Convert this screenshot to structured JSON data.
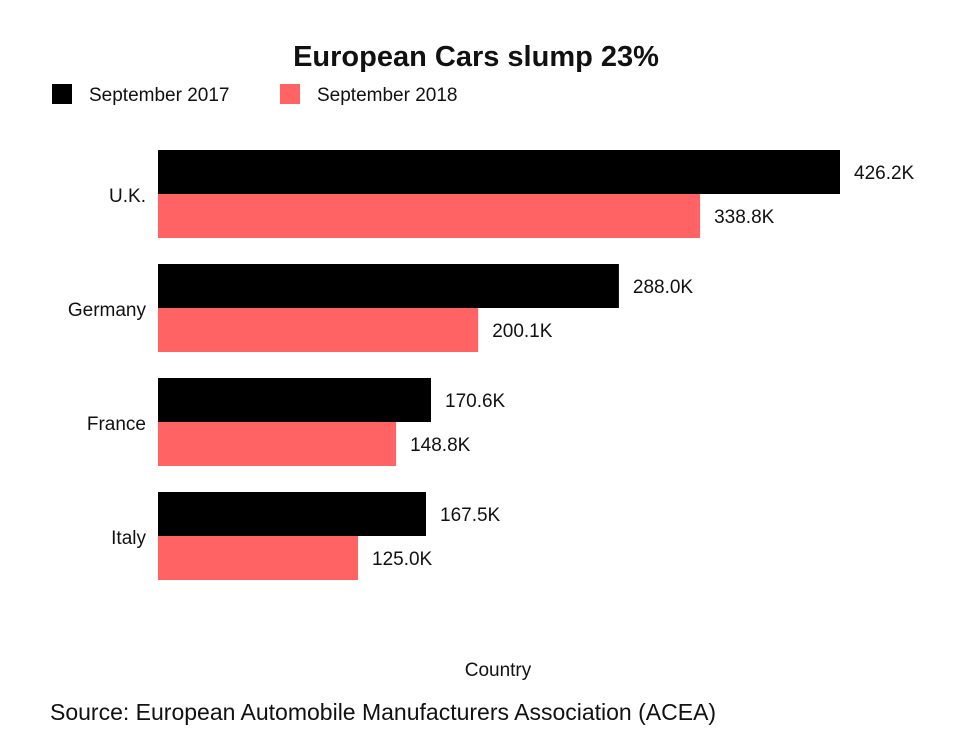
{
  "chart_data": {
    "type": "bar",
    "orientation": "horizontal",
    "title": "European Cars slump 23%",
    "categories": [
      "U.K.",
      "Germany",
      "France",
      "Italy"
    ],
    "series": [
      {
        "name": "September 2017",
        "color": "#000000",
        "values": [
          426.2,
          288.0,
          170.6,
          167.5
        ],
        "labels": [
          "426.2K",
          "288.0K",
          "170.6K",
          "167.5K"
        ]
      },
      {
        "name": "September 2018",
        "color": "#ff6363",
        "values": [
          338.8,
          200.1,
          148.8,
          125.0
        ],
        "labels": [
          "338.8K",
          "200.1K",
          "148.8K",
          "125.0K"
        ]
      }
    ],
    "xlabel": "Country",
    "xlim": [
      0,
      426.2
    ],
    "grid": false,
    "legend": "top-left",
    "source": "Source: European Automobile Manufacturers Association (ACEA)"
  }
}
